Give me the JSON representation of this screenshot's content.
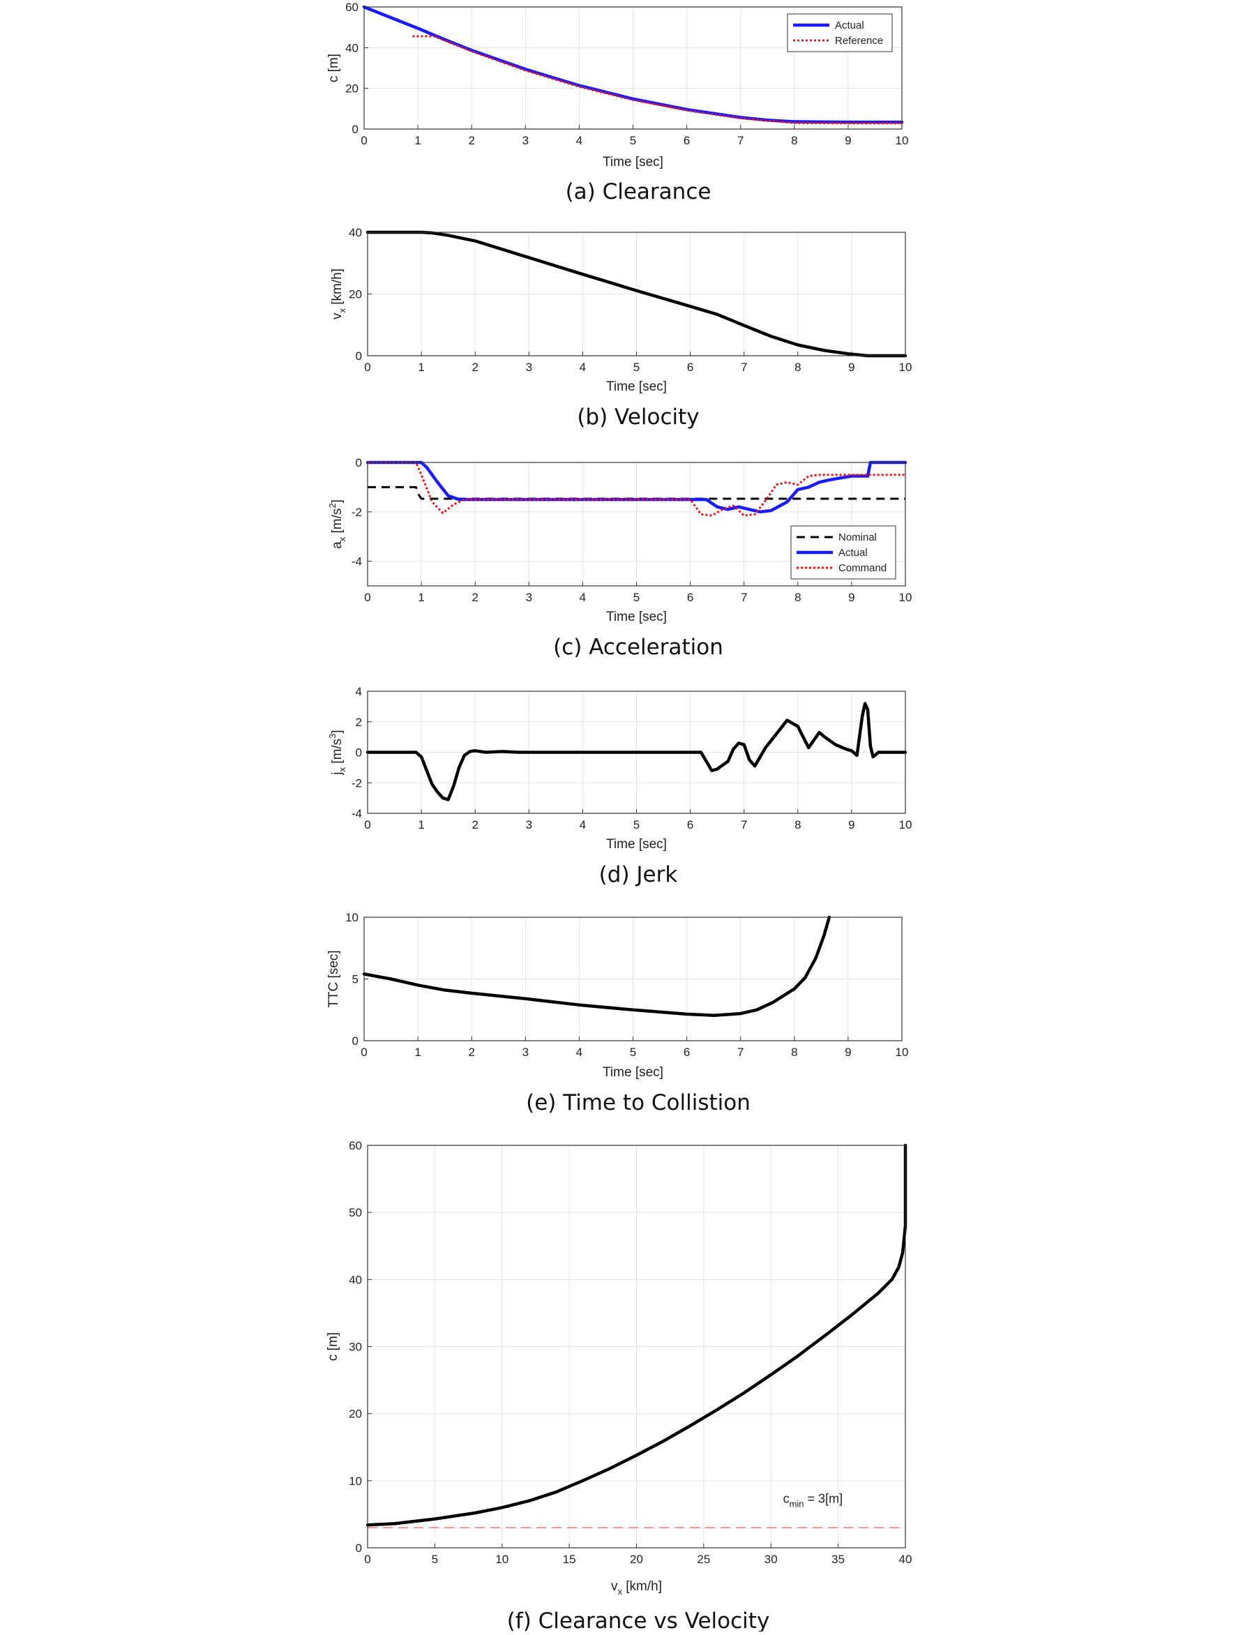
{
  "colors": {
    "actual": "#1a1aff",
    "reference": "#e8151b",
    "black": "#000000",
    "cmin": "#ff7070",
    "grid": "#e3e3e3"
  },
  "chart_data": [
    {
      "id": "a",
      "type": "line",
      "caption": "(a)  Clearance",
      "xlabel": "Time [sec]",
      "ylabel": "c [m]",
      "xlim": [
        0,
        10
      ],
      "ylim": [
        0,
        60
      ],
      "xticks": [
        "0",
        "1",
        "2",
        "3",
        "4",
        "5",
        "6",
        "7",
        "8",
        "9",
        "10"
      ],
      "yticks": [
        "0",
        "20",
        "40",
        "60"
      ],
      "grid": true,
      "legend": "top-right",
      "series": [
        {
          "name": "Actual",
          "style": "solid-blue",
          "x": [
            0,
            1,
            1.5,
            2,
            3,
            4,
            5,
            6,
            7,
            7.5,
            8,
            9,
            10
          ],
          "y": [
            60,
            49.5,
            44,
            38.7,
            29.4,
            21.4,
            14.8,
            9.6,
            5.7,
            4.4,
            3.6,
            3.4,
            3.4
          ]
        },
        {
          "name": "Reference",
          "style": "dotted-red",
          "x": [
            0.9,
            1.3,
            1.5,
            2,
            3,
            4,
            5,
            6,
            7,
            8,
            9,
            10
          ],
          "y": [
            45.6,
            45.6,
            43.5,
            38.2,
            28.8,
            20.8,
            14.3,
            9.2,
            5.3,
            3.0,
            2.8,
            2.8
          ]
        }
      ]
    },
    {
      "id": "b",
      "type": "line",
      "caption": "(b)  Velocity",
      "xlabel": "Time [sec]",
      "ylabel": "v",
      "ylabel_sub": "x",
      "ylabel_unit": " [km/h]",
      "xlim": [
        0,
        10
      ],
      "ylim": [
        0,
        40
      ],
      "xticks": [
        "0",
        "1",
        "2",
        "3",
        "4",
        "5",
        "6",
        "7",
        "8",
        "9",
        "10"
      ],
      "yticks": [
        "0",
        "20",
        "40"
      ],
      "grid": true,
      "series": [
        {
          "style": "solid-black",
          "x": [
            0,
            1,
            1.2,
            1.5,
            2,
            3,
            4,
            5,
            6,
            6.5,
            7,
            7.5,
            8,
            8.5,
            9,
            9.3,
            10
          ],
          "y": [
            40,
            40,
            39.8,
            39,
            37.2,
            31.8,
            26.4,
            21.1,
            16.0,
            13.4,
            9.8,
            6.3,
            3.5,
            1.7,
            0.5,
            0,
            0
          ]
        }
      ]
    },
    {
      "id": "c",
      "type": "line",
      "caption": "(c)  Acceleration",
      "xlabel": "Time [sec]",
      "ylabel": "a",
      "ylabel_sub": "x",
      "ylabel_unit": " [m/s",
      "ylabel_sup": "2",
      "ylabel_close": "]",
      "xlim": [
        0,
        10
      ],
      "ylim": [
        -5,
        0
      ],
      "xticks": [
        "0",
        "1",
        "2",
        "3",
        "4",
        "5",
        "6",
        "7",
        "8",
        "9",
        "10"
      ],
      "yticks": [
        "0",
        "-2",
        "-4"
      ],
      "grid": true,
      "legend": "bottom-right",
      "series": [
        {
          "name": "Nominal",
          "style": "dashed-black",
          "x": [
            0,
            0.9,
            0.95,
            1.0,
            10
          ],
          "y": [
            -1,
            -1,
            -1.3,
            -1.47,
            -1.47
          ]
        },
        {
          "name": "Actual",
          "style": "solid-blue",
          "x": [
            0,
            1,
            1.1,
            1.3,
            1.5,
            1.7,
            2,
            6,
            6.3,
            6.5,
            6.7,
            6.9,
            7.1,
            7.3,
            7.5,
            7.8,
            8,
            8.2,
            8.4,
            8.6,
            9,
            9.3,
            9.35,
            10
          ],
          "y": [
            0,
            0,
            -0.2,
            -0.8,
            -1.35,
            -1.5,
            -1.5,
            -1.5,
            -1.5,
            -1.8,
            -1.9,
            -1.8,
            -1.9,
            -2,
            -1.95,
            -1.6,
            -1.1,
            -1.0,
            -0.8,
            -0.7,
            -0.55,
            -0.55,
            0,
            0
          ]
        },
        {
          "name": "Command",
          "style": "dotted-red",
          "x": [
            0,
            0.9,
            1,
            1.2,
            1.4,
            1.6,
            1.8,
            2,
            6,
            6.2,
            6.4,
            6.6,
            6.8,
            7,
            7.2,
            7.4,
            7.6,
            7.8,
            8,
            8.2,
            8.4,
            9,
            10
          ],
          "y": [
            0,
            0,
            -0.5,
            -1.6,
            -2.05,
            -1.7,
            -1.5,
            -1.5,
            -1.5,
            -2.1,
            -2.15,
            -1.9,
            -1.75,
            -2.15,
            -2.1,
            -1.55,
            -0.9,
            -0.8,
            -0.9,
            -0.55,
            -0.5,
            -0.5,
            -0.5
          ]
        }
      ]
    },
    {
      "id": "d",
      "type": "line",
      "caption": "(d)  Jerk",
      "xlabel": "Time [sec]",
      "ylabel": "j",
      "ylabel_sub": "x",
      "ylabel_unit": " [m/s",
      "ylabel_sup": "3",
      "ylabel_close": "]",
      "xlim": [
        0,
        10
      ],
      "ylim": [
        -4,
        4
      ],
      "xticks": [
        "0",
        "1",
        "2",
        "3",
        "4",
        "5",
        "6",
        "7",
        "8",
        "9",
        "10"
      ],
      "yticks": [
        "4",
        "2",
        "0",
        "-2",
        "-4"
      ],
      "grid": true,
      "series": [
        {
          "style": "solid-black",
          "x": [
            0,
            0.9,
            1.0,
            1.1,
            1.2,
            1.3,
            1.4,
            1.5,
            1.6,
            1.7,
            1.8,
            1.9,
            2.0,
            2.2,
            2.5,
            2.8,
            3.0,
            3.5,
            4.0,
            4.5,
            5.0,
            5.5,
            6.0,
            6.2,
            6.3,
            6.4,
            6.5,
            6.7,
            6.8,
            6.9,
            7.0,
            7.1,
            7.2,
            7.3,
            7.4,
            7.6,
            7.8,
            8.0,
            8.1,
            8.2,
            8.3,
            8.4,
            8.5,
            8.7,
            8.9,
            9.0,
            9.1,
            9.2,
            9.25,
            9.3,
            9.35,
            9.4,
            9.5,
            10
          ],
          "y": [
            0,
            0,
            -0.3,
            -1.2,
            -2.1,
            -2.6,
            -3.0,
            -3.1,
            -2.2,
            -1.0,
            -0.2,
            0.05,
            0.1,
            0,
            0.05,
            0,
            0,
            0,
            0,
            0,
            0,
            0,
            0,
            0,
            -0.6,
            -1.2,
            -1.1,
            -0.6,
            0.2,
            0.6,
            0.5,
            -0.5,
            -0.9,
            -0.3,
            0.3,
            1.2,
            2.1,
            1.7,
            1.0,
            0.3,
            0.8,
            1.3,
            1.0,
            0.5,
            0.2,
            0.1,
            -0.2,
            2.4,
            3.2,
            2.8,
            0.4,
            -0.3,
            0,
            0
          ]
        }
      ]
    },
    {
      "id": "e",
      "type": "line",
      "caption": "(e)  Time to Collistion",
      "xlabel": "Time [sec]",
      "ylabel": "TTC [sec]",
      "xlim": [
        0,
        10
      ],
      "ylim": [
        0,
        10
      ],
      "xticks": [
        "0",
        "1",
        "2",
        "3",
        "4",
        "5",
        "6",
        "7",
        "8",
        "9",
        "10"
      ],
      "yticks": [
        "0",
        "5",
        "10"
      ],
      "grid": true,
      "series": [
        {
          "style": "solid-black",
          "x": [
            0,
            0.5,
            1,
            1.5,
            2,
            3,
            4,
            5,
            6,
            6.5,
            7,
            7.3,
            7.6,
            8,
            8.2,
            8.4,
            8.55,
            8.65
          ],
          "y": [
            5.4,
            5.0,
            4.5,
            4.1,
            3.85,
            3.4,
            2.9,
            2.5,
            2.15,
            2.05,
            2.2,
            2.5,
            3.1,
            4.2,
            5.1,
            6.7,
            8.5,
            10
          ]
        }
      ]
    },
    {
      "id": "f",
      "type": "line",
      "caption": "(f)  Clearance vs Velocity",
      "xlabel": "v",
      "xlabel_sub": "x",
      "xlabel_unit": " [km/h]",
      "ylabel": "c [m]",
      "xlim": [
        0,
        40
      ],
      "ylim": [
        0,
        60
      ],
      "xticks": [
        "0",
        "5",
        "10",
        "15",
        "20",
        "25",
        "30",
        "35",
        "40"
      ],
      "yticks": [
        "0",
        "10",
        "20",
        "30",
        "40",
        "50",
        "60"
      ],
      "grid": true,
      "annotation": {
        "text": "c",
        "sub": "min",
        "rest": " = 3[m]"
      },
      "series": [
        {
          "style": "solid-black",
          "x": [
            0,
            2,
            5,
            8,
            10,
            12,
            14,
            16,
            18,
            20,
            22,
            24,
            26,
            28,
            30,
            32,
            34,
            36,
            38,
            39,
            39.5,
            39.8,
            40,
            40
          ],
          "y": [
            3.4,
            3.6,
            4.3,
            5.2,
            6.0,
            7.0,
            8.3,
            10.0,
            11.8,
            13.8,
            15.9,
            18.2,
            20.6,
            23.1,
            25.8,
            28.6,
            31.6,
            34.7,
            38.0,
            40.0,
            41.8,
            44.0,
            48.0,
            60
          ]
        },
        {
          "name": "c_min",
          "style": "dashed-red",
          "x": [
            0,
            40
          ],
          "y": [
            3,
            3
          ]
        }
      ]
    }
  ]
}
